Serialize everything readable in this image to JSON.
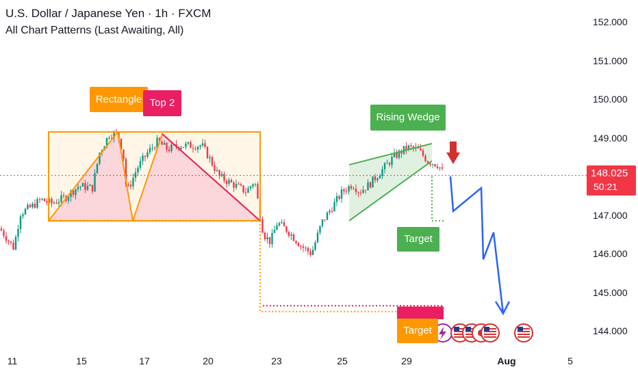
{
  "header": {
    "title": "U.S. Dollar / Japanese Yen · 1h · FXCM",
    "subtitle": "All Chart Patterns (Last Awaiting, All)"
  },
  "price_badge": {
    "price": "148.025",
    "countdown": "50:21"
  },
  "labels": {
    "rectangle": "Rectangle",
    "top2": "Top 2",
    "rising_wedge": "Rising Wedge",
    "target_green": "Target",
    "target_orange": "Target"
  },
  "colors": {
    "bull": "#089981",
    "bear": "#f23645",
    "rectangle": "#ff9800",
    "top2": "#e91e63",
    "wedge": "#4caf50",
    "projection": "#2962ff",
    "current_price_line": "#f23645"
  },
  "chart_data": {
    "type": "candlestick",
    "symbol": "USDJPY",
    "timeframe": "1h",
    "y_ticks": [
      "152.000",
      "151.000",
      "150.000",
      "149.000",
      "147.000",
      "146.000",
      "145.000",
      "144.000"
    ],
    "x_ticks": [
      "11",
      "15",
      "17",
      "20",
      "23",
      "25",
      "29",
      "Aug",
      "5"
    ],
    "ylim": [
      143.4,
      152.5
    ],
    "current_price": 148.025,
    "price_path": [
      [
        0,
        146.65
      ],
      [
        10,
        146.4
      ],
      [
        20,
        146.15
      ],
      [
        30,
        147.05
      ],
      [
        45,
        147.2
      ],
      [
        60,
        147.4
      ],
      [
        75,
        147.3
      ],
      [
        95,
        147.45
      ],
      [
        115,
        147.75
      ],
      [
        135,
        147.7
      ],
      [
        145,
        148.6
      ],
      [
        160,
        149.1
      ],
      [
        172,
        149.1
      ],
      [
        180,
        148.6
      ],
      [
        185,
        147.6
      ],
      [
        193,
        147.9
      ],
      [
        200,
        148.2
      ],
      [
        215,
        148.6
      ],
      [
        230,
        148.9
      ],
      [
        245,
        148.7
      ],
      [
        260,
        148.8
      ],
      [
        280,
        148.8
      ],
      [
        295,
        148.8
      ],
      [
        305,
        148.5
      ],
      [
        320,
        148.0
      ],
      [
        340,
        147.8
      ],
      [
        360,
        147.6
      ],
      [
        372,
        147.9
      ],
      [
        380,
        147.0
      ],
      [
        385,
        146.5
      ],
      [
        395,
        146.3
      ],
      [
        405,
        146.8
      ],
      [
        420,
        146.6
      ],
      [
        440,
        146.2
      ],
      [
        455,
        146.0
      ],
      [
        470,
        146.8
      ],
      [
        485,
        147.2
      ],
      [
        500,
        147.6
      ],
      [
        515,
        147.8
      ],
      [
        525,
        147.6
      ],
      [
        540,
        147.8
      ],
      [
        555,
        148.1
      ],
      [
        575,
        148.5
      ],
      [
        595,
        148.75
      ],
      [
        610,
        148.7
      ],
      [
        625,
        148.4
      ],
      [
        640,
        148.3
      ],
      [
        647,
        148.1
      ]
    ],
    "patterns": [
      {
        "name": "Rectangle",
        "top": 149.15,
        "bottom": 146.85,
        "target": 144.5
      },
      {
        "name": "Top 2",
        "neckline": 146.85,
        "tops": [
          149.15,
          149.1
        ],
        "target": 144.65
      },
      {
        "name": "Rising Wedge",
        "upper": [
          148.3,
          148.85
        ],
        "lower": [
          146.85,
          148.4
        ],
        "target": 146.85
      }
    ],
    "projection": [
      148.0,
      147.1,
      147.7,
      145.85,
      146.55,
      144.45
    ],
    "grid": false
  }
}
